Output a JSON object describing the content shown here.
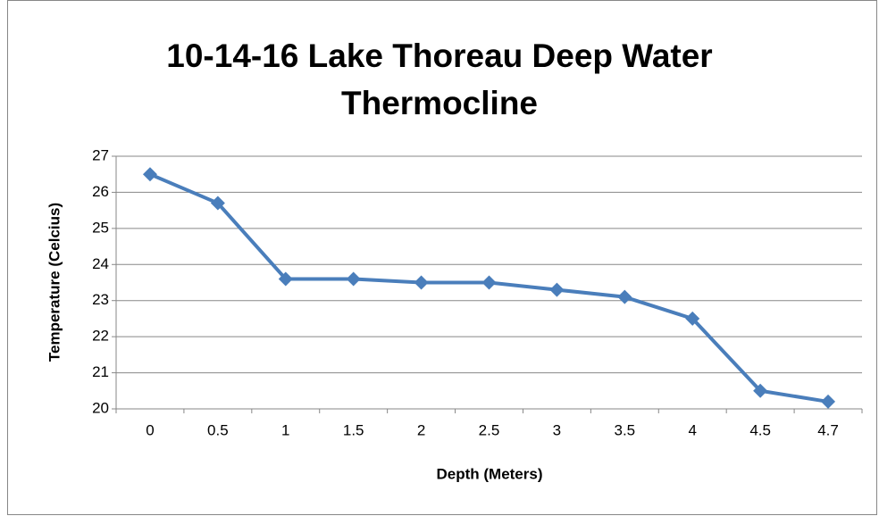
{
  "chart_data": {
    "type": "line",
    "title": "10-14-16 Lake Thoreau Deep Water Thermocline",
    "xlabel": "Depth (Meters)",
    "ylabel": "Temperature (Celcius)",
    "categories": [
      "0",
      "0.5",
      "1",
      "1.5",
      "2",
      "2.5",
      "3",
      "3.5",
      "4",
      "4.5",
      "4.7"
    ],
    "series": [
      {
        "name": "Temperature",
        "color": "#4a7ebb",
        "values": [
          26.5,
          25.7,
          23.6,
          23.6,
          23.5,
          23.5,
          23.3,
          23.1,
          22.5,
          20.5,
          20.2
        ]
      }
    ],
    "ylim": [
      20,
      27
    ],
    "yticks": [
      20,
      21,
      22,
      23,
      24,
      25,
      26,
      27
    ],
    "grid": true,
    "legend": false
  }
}
